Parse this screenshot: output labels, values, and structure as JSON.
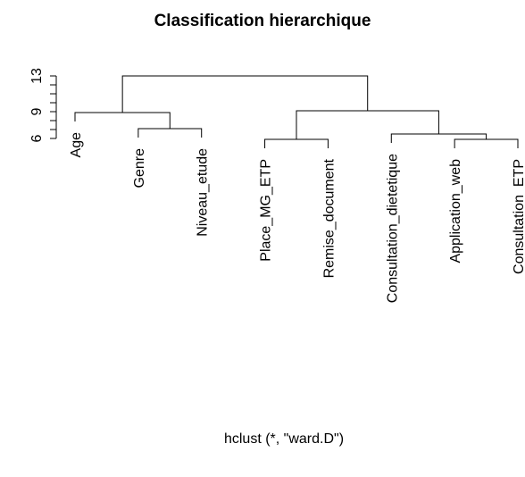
{
  "chart_data": {
    "type": "dendrogram",
    "title": "Classification hierarchique",
    "xlabel": "hclust (*, \"ward.D\")",
    "labels": [
      "Age",
      "Genre",
      "Niveau_etude",
      "Place_MG_ETP",
      "Remise_document",
      "Consultation_dietetique",
      "Application_web",
      "Consultation_ETP"
    ],
    "merge": [
      [
        -2,
        -3
      ],
      [
        -1,
        1
      ],
      [
        -4,
        -5
      ],
      [
        -7,
        -8
      ],
      [
        -6,
        4
      ],
      [
        3,
        5
      ],
      [
        2,
        6
      ]
    ],
    "height": [
      7.1,
      8.9,
      5.9,
      5.9,
      6.5,
      9.1,
      13.0
    ],
    "ylim": [
      6,
      13
    ],
    "yticks": [
      6,
      9,
      13
    ],
    "yminor_ticks": [
      7,
      8,
      10,
      11,
      12
    ],
    "color": "#000000"
  }
}
